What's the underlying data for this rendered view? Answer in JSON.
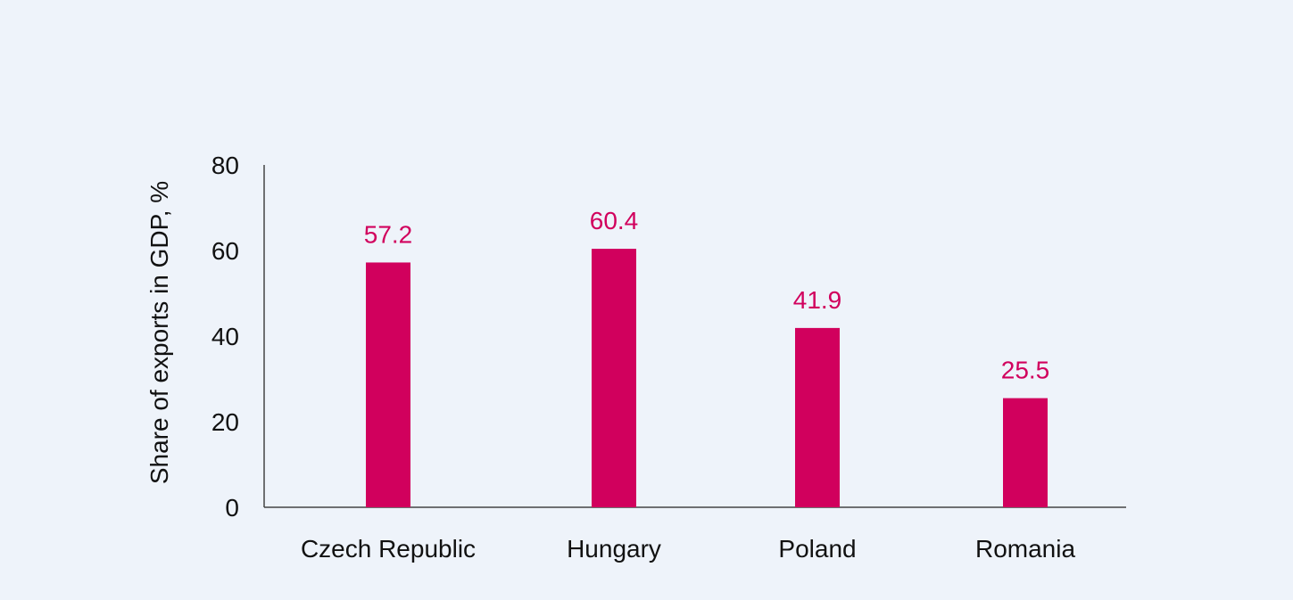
{
  "chart_data": {
    "type": "bar",
    "title": "",
    "xlabel": "",
    "ylabel": "Share of exports in GDP, %",
    "categories": [
      "Czech Republic",
      "Hungary",
      "Poland",
      "Romania"
    ],
    "values": [
      57.2,
      60.4,
      41.9,
      25.5
    ],
    "data_labels": [
      "57.2",
      "60.4",
      "41.9",
      "25.5"
    ],
    "ylim": [
      0,
      80
    ],
    "yticks": [
      0,
      20,
      40,
      60,
      80
    ],
    "ytick_labels": [
      "0",
      "20",
      "40",
      "60",
      "80"
    ],
    "grid": false,
    "legend": "none",
    "colors": {
      "bar": "#d1005d",
      "data_label": "#d1005d",
      "axis": "#444444",
      "background": "#eef3fa"
    }
  }
}
